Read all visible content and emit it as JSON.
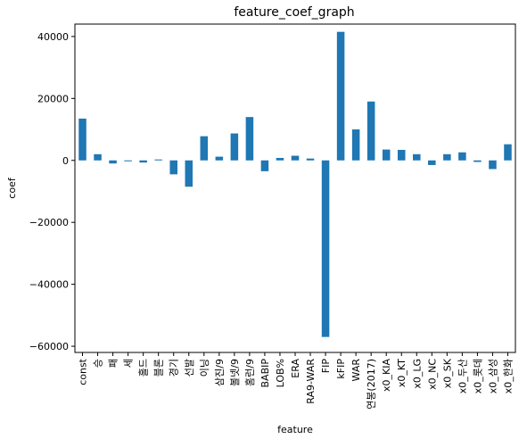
{
  "chart_data": {
    "type": "bar",
    "title": "feature_coef_graph",
    "xlabel": "feature",
    "ylabel": "coef",
    "ylim": [
      -62000,
      44000
    ],
    "yticks": [
      -60000,
      -40000,
      -20000,
      0,
      20000,
      40000
    ],
    "ytick_labels": [
      "−60000",
      "−40000",
      "−20000",
      "0",
      "20000",
      "40000"
    ],
    "bar_color": "#1f77b4",
    "grid": false,
    "categories": [
      "const",
      "승",
      "패",
      "세",
      "홀드",
      "블론",
      "경기",
      "선발",
      "이닝",
      "삼진/9",
      "볼넷/9",
      "홈런/9",
      "BABIP",
      "LOB%",
      "ERA",
      "RA9-WAR",
      "FIP",
      "kFIP",
      "WAR",
      "연봉(2017)",
      "x0_KIA",
      "x0_KT",
      "x0_LG",
      "x0_NC",
      "x0_SK",
      "x0_두산",
      "x0_롯데",
      "x0_삼성",
      "x0_한화"
    ],
    "values": [
      13500,
      2000,
      -1000,
      -300,
      -700,
      300,
      -4500,
      -8500,
      7800,
      1200,
      8700,
      14000,
      -3500,
      800,
      1500,
      600,
      -57000,
      41500,
      10000,
      19000,
      3500,
      3400,
      2000,
      -1500,
      2000,
      2600,
      -500,
      -2800,
      5200
    ]
  }
}
